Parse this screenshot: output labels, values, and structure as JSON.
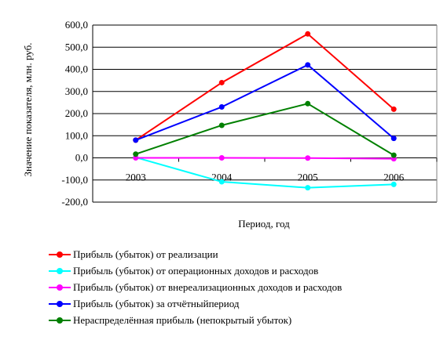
{
  "chart_data": {
    "type": "line",
    "title": "",
    "xlabel": "Период, год",
    "ylabel": "Значение показателя, млн. руб.",
    "categories": [
      "2003",
      "2004",
      "2005",
      "2006"
    ],
    "ylim": [
      -200,
      600
    ],
    "yticks": [
      "600,0",
      "500,0",
      "400,0",
      "300,0",
      "200,0",
      "100,0",
      "0,0",
      "-100,0",
      "-200,0"
    ],
    "ytick_values": [
      600,
      500,
      400,
      300,
      200,
      100,
      0,
      -100,
      -200
    ],
    "grid": true,
    "legend_position": "bottom",
    "series": [
      {
        "name": "Прибыль (убыток) от реализации",
        "color": "#ff0000",
        "values": [
          80,
          340,
          560,
          220
        ]
      },
      {
        "name": "Прибыль (убыток) от операционных доходов и расходов",
        "color": "#00ffff",
        "values": [
          2,
          -108,
          -135,
          -120
        ]
      },
      {
        "name": "Прибыль (убыток) от внереализационных доходов и расходов",
        "color": "#ff00ff",
        "values": [
          0,
          0,
          -1,
          -4
        ]
      },
      {
        "name": "Прибыль (убыток) за отчётныйпериод",
        "color": "#0000ff",
        "values": [
          80,
          230,
          420,
          88
        ]
      },
      {
        "name": "Нераспределённая прибыль (непокрытый убыток)",
        "color": "#008000",
        "values": [
          17,
          147,
          245,
          12
        ]
      }
    ]
  }
}
